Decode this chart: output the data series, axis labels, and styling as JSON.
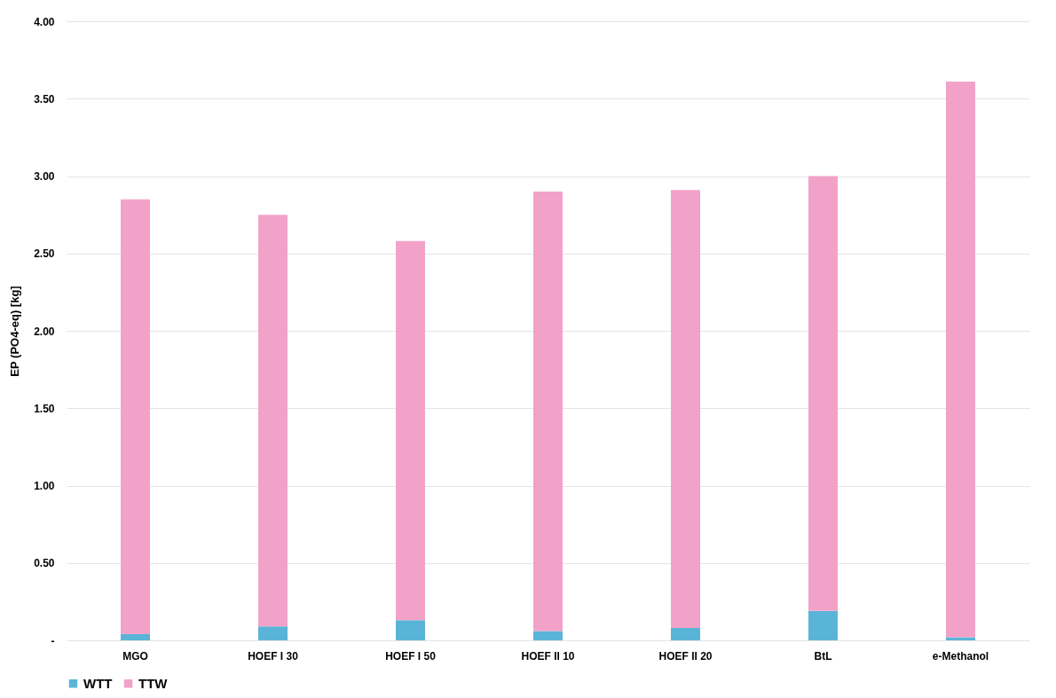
{
  "chart_data": {
    "type": "bar",
    "stacked": true,
    "ylabel": "EP (PO4-eq) [kg]",
    "categories": [
      "MGO",
      "HOEF I 30",
      "HOEF I 50",
      "HOEF II 10",
      "HOEF II 20",
      "BtL",
      "e-Methanol"
    ],
    "series": [
      {
        "name": "WTT",
        "color": "#5ab4d8",
        "values": [
          0.04,
          0.09,
          0.13,
          0.06,
          0.08,
          0.19,
          0.02
        ]
      },
      {
        "name": "TTW",
        "color": "#f2a2c8",
        "values": [
          2.81,
          2.66,
          2.45,
          2.84,
          2.83,
          2.81,
          3.59
        ]
      }
    ],
    "ylim": [
      0,
      4
    ],
    "yticks": [
      {
        "value": 0,
        "label": "-"
      },
      {
        "value": 0.5,
        "label": "0.50"
      },
      {
        "value": 1,
        "label": "1.00"
      },
      {
        "value": 1.5,
        "label": "1.50"
      },
      {
        "value": 2,
        "label": "2.00"
      },
      {
        "value": 2.5,
        "label": "2.50"
      },
      {
        "value": 3,
        "label": "3.00"
      },
      {
        "value": 3.5,
        "label": "3.50"
      },
      {
        "value": 4,
        "label": "4.00"
      }
    ],
    "grid": "y",
    "legend": "bottom"
  }
}
